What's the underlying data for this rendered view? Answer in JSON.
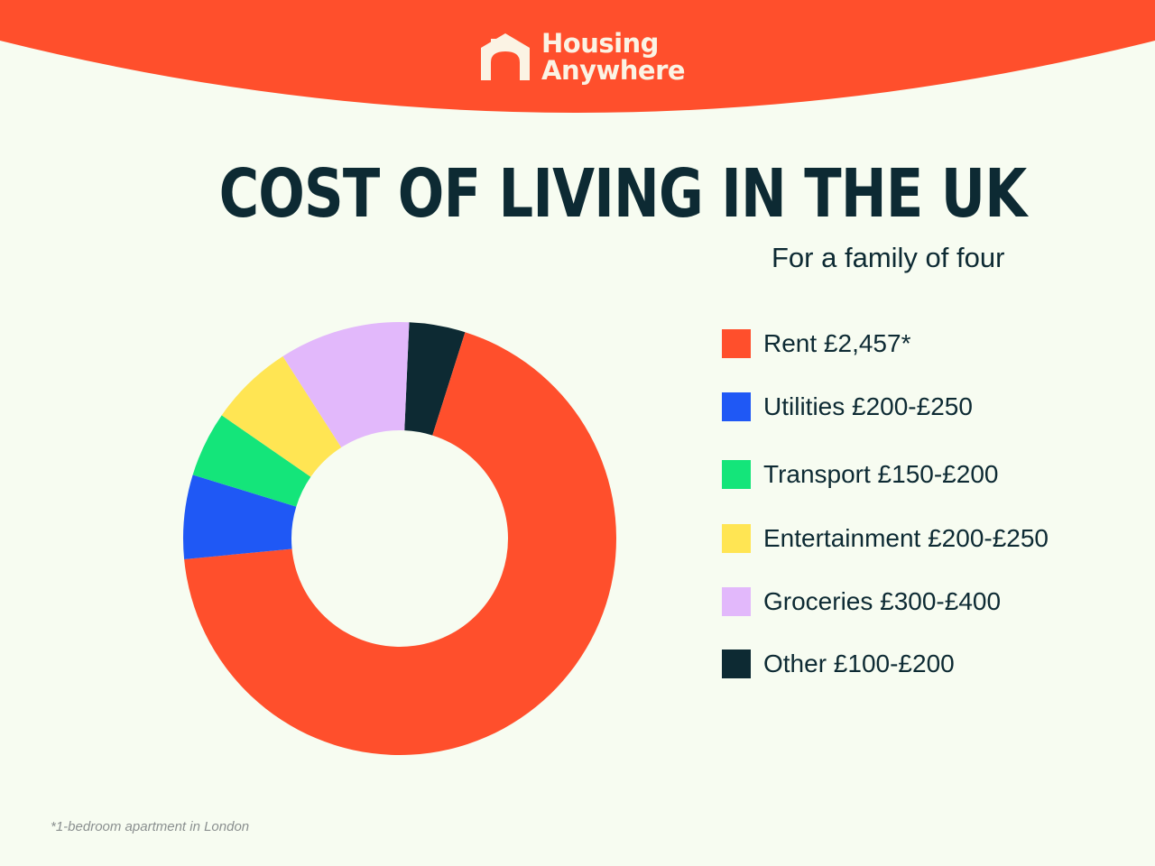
{
  "brand": {
    "line1": "Housing",
    "line2": "Anywhere",
    "header_color": "#ff4f2c",
    "logo_color": "#fbf3e4"
  },
  "title": "COST OF LIVING IN THE UK",
  "subtitle": "For a family of four",
  "footnote": "*1-bedroom apartment in London",
  "chart_data": {
    "type": "pie",
    "style": "donut",
    "categories": [
      "Rent",
      "Utilities",
      "Transport",
      "Entertainment",
      "Groceries",
      "Other"
    ],
    "values": [
      2457,
      225,
      175,
      225,
      350,
      150
    ],
    "colors": [
      "#ff4f2c",
      "#1f58f5",
      "#14e57a",
      "#ffe553",
      "#e2b8fb",
      "#0d2a33"
    ],
    "legend": [
      {
        "label": "Rent £2,457*",
        "color": "#ff4f2c"
      },
      {
        "label": "Utilities £200-£250",
        "color": "#1f58f5"
      },
      {
        "label": "Transport £150-£200",
        "color": "#14e57a"
      },
      {
        "label": "Entertainment £200-£250",
        "color": "#ffe553"
      },
      {
        "label": "Groceries £300-£400",
        "color": "#e2b8fb"
      },
      {
        "label": "Other £100-£200",
        "color": "#0d2a33"
      }
    ],
    "legend_position": "right"
  }
}
